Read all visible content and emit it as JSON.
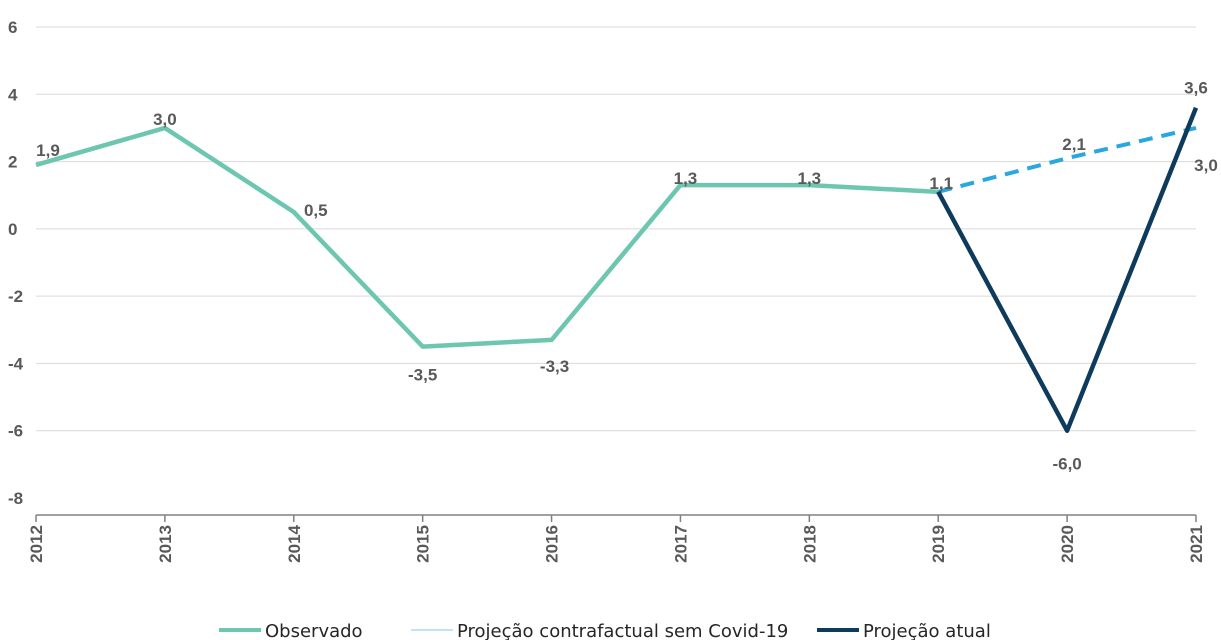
{
  "chart_data": {
    "type": "line",
    "categories": [
      "2012",
      "2013",
      "2014",
      "2015",
      "2016",
      "2017",
      "2018",
      "2019",
      "2020",
      "2021"
    ],
    "ylim": [
      -8,
      6
    ],
    "yticks": [
      6,
      4,
      2,
      0,
      -2,
      -4,
      -6,
      -8
    ],
    "ytick_labels": [
      "6",
      "4",
      "2",
      "0",
      "-2",
      "-4",
      "-6",
      "-8"
    ],
    "grid": true,
    "legend_position": "bottom",
    "series": [
      {
        "name": "Observado",
        "color": "#6cc6b0",
        "style": "solid",
        "values": [
          1.9,
          3.0,
          0.5,
          -3.5,
          -3.3,
          1.3,
          1.3,
          1.1,
          null,
          null
        ],
        "labels": [
          "1,9",
          "3,0",
          "0,5",
          "-3,5",
          "-3,3",
          "1,3",
          "1,3",
          "1,1",
          null,
          null
        ]
      },
      {
        "name": "Projeção contrafactual sem Covid-19",
        "color": "#29a8df",
        "style": "dashed",
        "values": [
          null,
          null,
          null,
          null,
          null,
          null,
          null,
          1.1,
          2.1,
          3.0
        ],
        "labels": [
          null,
          null,
          null,
          null,
          null,
          null,
          null,
          null,
          "2,1",
          "3,0"
        ]
      },
      {
        "name": "Projeção atual",
        "color": "#0e3a5c",
        "style": "solid",
        "values": [
          null,
          null,
          null,
          null,
          null,
          null,
          null,
          1.1,
          -6.0,
          3.6
        ],
        "labels": [
          null,
          null,
          null,
          null,
          null,
          null,
          null,
          null,
          "-6,0",
          "3,6"
        ]
      }
    ]
  }
}
